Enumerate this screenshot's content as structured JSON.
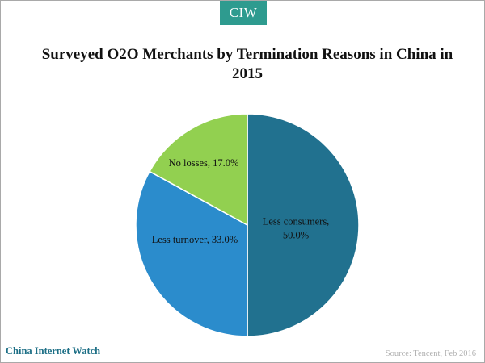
{
  "logo": {
    "text": "CIW",
    "color": "#2e9b8f"
  },
  "chart_data": {
    "type": "pie",
    "title": "Surveyed O2O Merchants by Termination Reasons in China in 2015",
    "slices": [
      {
        "label_lines": [
          "Less consumers,",
          "50.0%"
        ],
        "category": "Less consumers",
        "value": 50.0,
        "color": "#21718f"
      },
      {
        "label_lines": [
          "Less turnover, 33.0%"
        ],
        "category": "Less turnover",
        "value": 33.0,
        "color": "#2b8ccc"
      },
      {
        "label_lines": [
          "No losses, 17.0%"
        ],
        "category": "No losses",
        "value": 17.0,
        "color": "#92d050"
      }
    ],
    "start": "12 o'clock",
    "direction": "clockwise",
    "legend": "none"
  },
  "footer": {
    "brand": "China Internet Watch",
    "source": "Source: Tencent, Feb 2016"
  }
}
